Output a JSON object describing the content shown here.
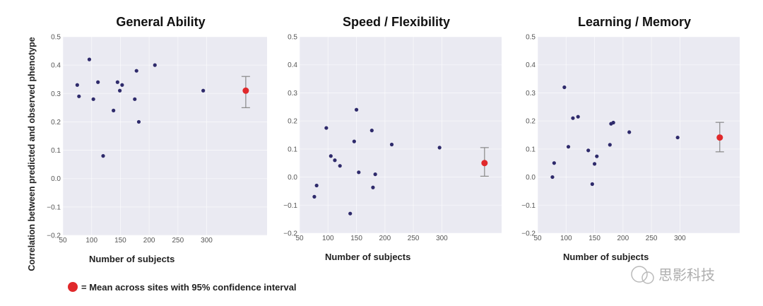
{
  "chart_data": [
    {
      "type": "scatter",
      "title": "General Ability",
      "xlabel": "Number of subjects",
      "ylabel": "Correlation between predicted and observed phenotype",
      "xlim": [
        50,
        405
      ],
      "ylim": [
        -0.2,
        0.5
      ],
      "xticks": [
        50,
        100,
        150,
        200,
        250,
        300
      ],
      "yticks": [
        -0.2,
        -0.1,
        0.0,
        0.1,
        0.2,
        0.3,
        0.4,
        0.5
      ],
      "grid": true,
      "points": [
        [
          75,
          0.33
        ],
        [
          78,
          0.29
        ],
        [
          96,
          0.42
        ],
        [
          103,
          0.28
        ],
        [
          111,
          0.34
        ],
        [
          120,
          0.08
        ],
        [
          138,
          0.24
        ],
        [
          145,
          0.34
        ],
        [
          149,
          0.31
        ],
        [
          153,
          0.33
        ],
        [
          175,
          0.28
        ],
        [
          178,
          0.38
        ],
        [
          182,
          0.2
        ],
        [
          210,
          0.4
        ],
        [
          294,
          0.31
        ]
      ],
      "mean": {
        "x": 368,
        "y": 0.31,
        "ci_low": 0.25,
        "ci_high": 0.36
      }
    },
    {
      "type": "scatter",
      "title": "Speed / Flexibility",
      "xlabel": "Number of subjects",
      "xlim": [
        50,
        405
      ],
      "ylim": [
        -0.2,
        0.5
      ],
      "xticks": [
        50,
        100,
        150,
        200,
        250,
        300
      ],
      "yticks": [
        -0.2,
        -0.1,
        0.0,
        0.1,
        0.2,
        0.3,
        0.4,
        0.5
      ],
      "grid": true,
      "points": [
        [
          76,
          -0.07
        ],
        [
          80,
          -0.03
        ],
        [
          97,
          0.175
        ],
        [
          105,
          0.075
        ],
        [
          112,
          0.06
        ],
        [
          121,
          0.04
        ],
        [
          139,
          -0.13
        ],
        [
          146,
          0.127
        ],
        [
          150,
          0.24
        ],
        [
          154,
          0.017
        ],
        [
          177,
          0.166
        ],
        [
          179,
          -0.037
        ],
        [
          183,
          0.01
        ],
        [
          212,
          0.116
        ],
        [
          296,
          0.105
        ]
      ],
      "mean": {
        "x": 375,
        "y": 0.05,
        "ci_low": 0.003,
        "ci_high": 0.105
      }
    },
    {
      "type": "scatter",
      "title": "Learning / Memory",
      "xlabel": "Number of subjects",
      "xlim": [
        50,
        405
      ],
      "ylim": [
        -0.2,
        0.5
      ],
      "xticks": [
        50,
        100,
        150,
        200,
        250,
        300
      ],
      "yticks": [
        -0.2,
        -0.1,
        0.0,
        0.1,
        0.2,
        0.3,
        0.4,
        0.5
      ],
      "grid": true,
      "points": [
        [
          76,
          0.0
        ],
        [
          79,
          0.05
        ],
        [
          97,
          0.32
        ],
        [
          104,
          0.108
        ],
        [
          112,
          0.21
        ],
        [
          121,
          0.215
        ],
        [
          139,
          0.095
        ],
        [
          146,
          -0.025
        ],
        [
          150,
          0.047
        ],
        [
          154,
          0.074
        ],
        [
          177,
          0.115
        ],
        [
          179,
          0.19
        ],
        [
          183,
          0.194
        ],
        [
          211,
          0.16
        ],
        [
          296,
          0.141
        ]
      ],
      "mean": {
        "x": 370,
        "y": 0.141,
        "ci_low": 0.09,
        "ci_high": 0.195
      }
    }
  ],
  "legend": {
    "text": "= Mean across sites with 95% confidence interval",
    "placement": "bottom-left"
  },
  "watermark": "思影科技",
  "colors": {
    "point": "#2e2a6b",
    "mean": "#e0282b",
    "errorbar": "#888888",
    "plot_bg": "#eaeaf2",
    "grid": "#ffffff"
  }
}
